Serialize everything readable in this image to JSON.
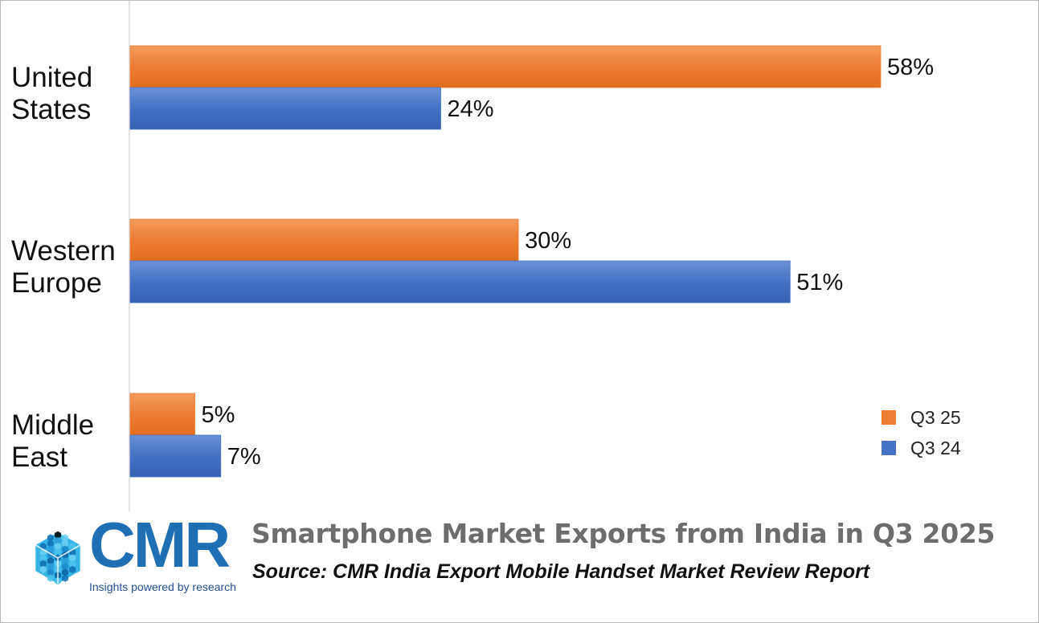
{
  "chart_data": {
    "type": "bar",
    "orientation": "horizontal",
    "categories": [
      [
        "United",
        "States"
      ],
      [
        "Western",
        "Europe"
      ],
      [
        "Middle",
        "East"
      ]
    ],
    "series": [
      {
        "name": "Q3 25",
        "values": [
          58,
          30,
          5
        ],
        "labels": [
          "58%",
          "30%",
          "5%"
        ],
        "color": "#ed7d31"
      },
      {
        "name": "Q3 24",
        "values": [
          24,
          51,
          7
        ],
        "labels": [
          "24%",
          "51%",
          "7%"
        ],
        "color": "#4472c4"
      }
    ],
    "xlim": [
      0,
      70
    ],
    "grid": false,
    "legend_position": "bottom-right",
    "unit": "%"
  },
  "footer": {
    "title": "Smartphone Market Exports from India in Q3 2025",
    "source": "Source: CMR India Export Mobile Handset Market Review Report"
  },
  "logo": {
    "name": "CMR",
    "tagline": "Insights powered by research",
    "icon": "cube-mosaic-icon",
    "color": "#1f6fb5"
  }
}
